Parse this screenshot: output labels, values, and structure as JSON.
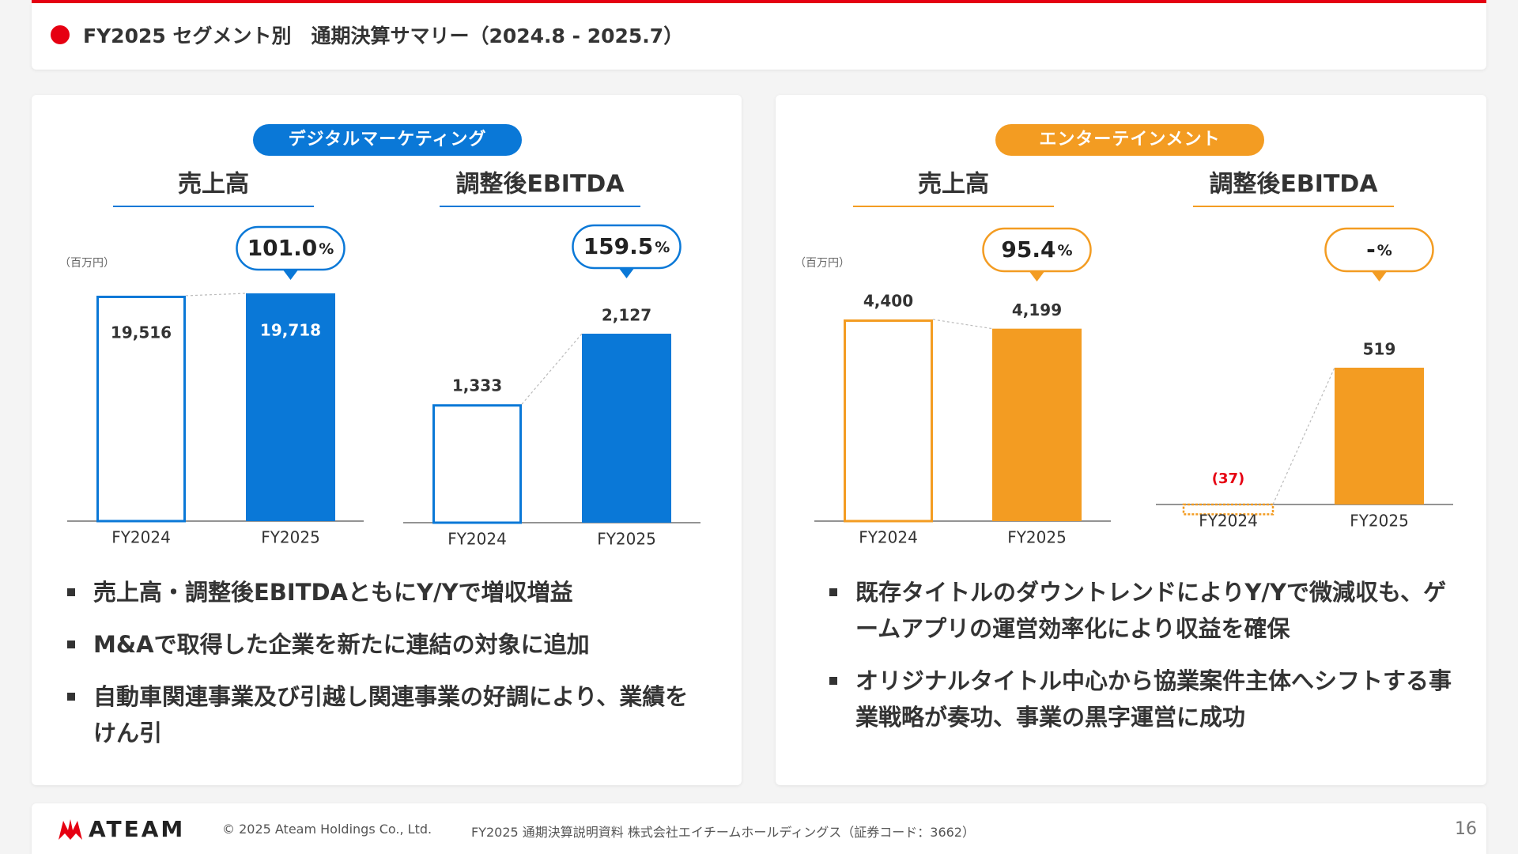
{
  "header": {
    "title": "FY2025 セグメント別　通期決算サマリー（2024.8 - 2025.7）"
  },
  "sections": [
    {
      "label": "デジタルマーケティング",
      "bullets": [
        "売上高・調整後EBITDAともにY/Yで増収増益",
        "M&Aで取得した企業を新たに連結の対象に追加",
        "自動車関連事業及び引越し関連事業の好調により、業績をけん引"
      ]
    },
    {
      "label": "エンターテインメント",
      "bullets": [
        "既存タイトルのダウントレンドによりY/Yで微減収も、ゲームアプリの運営効率化により収益を確保",
        "オリジナルタイトル中心から協業案件主体へシフトする事業戦略が奏功、事業の黒字運営に成功"
      ]
    }
  ],
  "chart_data": [
    {
      "type": "bar",
      "title": "売上高",
      "unit": "（百万円）",
      "categories": [
        "FY2024",
        "FY2025"
      ],
      "values": [
        19516,
        19718
      ],
      "value_labels": [
        "19,516",
        "19,718"
      ],
      "color": "#0a78d7",
      "badge": {
        "number": "101.0",
        "unit": "%"
      }
    },
    {
      "type": "bar",
      "title": "調整後EBITDA",
      "categories": [
        "FY2024",
        "FY2025"
      ],
      "values": [
        1333,
        2127
      ],
      "value_labels": [
        "1,333",
        "2,127"
      ],
      "color": "#0a78d7",
      "badge": {
        "number": "159.5",
        "unit": "%"
      }
    },
    {
      "type": "bar",
      "title": "売上高",
      "unit": "（百万円）",
      "categories": [
        "FY2024",
        "FY2025"
      ],
      "values": [
        4400,
        4199
      ],
      "value_labels": [
        "4,400",
        "4,199"
      ],
      "color": "#f39c22",
      "badge": {
        "number": "95.4",
        "unit": "%"
      }
    },
    {
      "type": "bar",
      "title": "調整後EBITDA",
      "categories": [
        "FY2024",
        "FY2025"
      ],
      "values": [
        -37,
        519
      ],
      "value_labels": [
        "(37)",
        "519"
      ],
      "color": "#f39c22",
      "badge": {
        "number": "-",
        "unit": "%"
      }
    }
  ],
  "footer": {
    "logo": "ATEAM",
    "copyright": "© 2025 Ateam Holdings Co., Ltd.",
    "document": "FY2025 通期決算説明資料 株式会社エイチームホールディングス（証券コード：3662）",
    "page": "16"
  }
}
